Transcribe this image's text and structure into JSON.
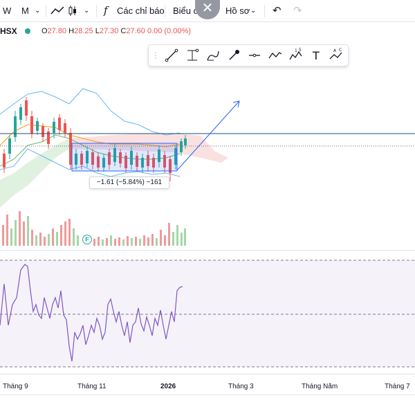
{
  "toolbar": {
    "intervals": [
      "W",
      "M"
    ],
    "indicators_label": "Các chỉ báo",
    "chart_label": "Biểu đồ",
    "profile_label": "Hồ sơ"
  },
  "legend": {
    "symbol": "HSX",
    "open_label": "O",
    "open": "27.80",
    "high_label": "H",
    "high": "28.25",
    "low_label": "L",
    "low": "27.30",
    "close_label": "C",
    "close": "27.60",
    "change": "0.00 (0.00%)"
  },
  "measure": {
    "label": "−1.61 (−5.84%) −161"
  },
  "flag": {
    "label": "F"
  },
  "time_axis": [
    "Tháng 9",
    "Tháng 11",
    "2026",
    "Tháng 3",
    "Tháng Năm",
    "Tháng 7"
  ],
  "drawing_tools": [
    "trend-line",
    "ray",
    "brush",
    "eyedropper",
    "horizontal-line",
    "path",
    "pattern-15",
    "text",
    "pattern-abc"
  ],
  "colors": {
    "up": "#26a69a",
    "down": "#ef5350",
    "line": "#2962ff",
    "rsi": "#7e57c2"
  }
}
